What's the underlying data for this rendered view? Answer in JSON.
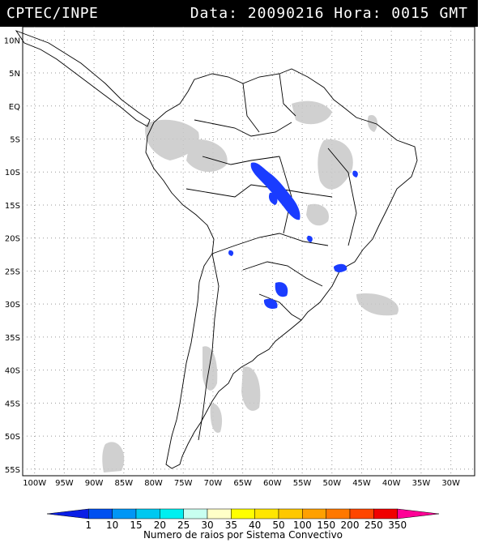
{
  "header": {
    "left": "CPTEC/INPE",
    "right": "Data: 20090216 Hora: 0015 GMT"
  },
  "map": {
    "lat_labels": [
      "10N",
      "5N",
      "EQ",
      "5S",
      "10S",
      "15S",
      "20S",
      "25S",
      "30S",
      "35S",
      "40S",
      "45S",
      "50S",
      "55S"
    ],
    "lon_labels": [
      "100W",
      "95W",
      "90W",
      "85W",
      "80W",
      "75W",
      "70W",
      "65W",
      "60W",
      "55W",
      "50W",
      "45W",
      "40W",
      "35W",
      "30W"
    ],
    "lat_values": [
      10,
      5,
      0,
      -5,
      -10,
      -15,
      -20,
      -25,
      -30,
      -35,
      -40,
      -45,
      -50,
      -55
    ],
    "lon_values": [
      -100,
      -95,
      -90,
      -85,
      -80,
      -75,
      -70,
      -65,
      -60,
      -55,
      -50,
      -45,
      -40,
      -35,
      -30
    ],
    "lightning_color": "#1a3cff",
    "cloud_color": "#c8c8c8"
  },
  "colorbar": {
    "labels": [
      "1",
      "10",
      "15",
      "20",
      "25",
      "30",
      "35",
      "40",
      "50",
      "100",
      "150",
      "200",
      "250",
      "350"
    ],
    "colors": [
      "#0a1ee6",
      "#0050f0",
      "#0096f5",
      "#00c8f0",
      "#00f0f0",
      "#c8fff0",
      "#ffffc8",
      "#ffff00",
      "#ffe600",
      "#ffc800",
      "#ffa000",
      "#ff7800",
      "#ff4600",
      "#f00000",
      "#ff0096"
    ],
    "title": "Numero de raios por Sistema Convectivo"
  }
}
